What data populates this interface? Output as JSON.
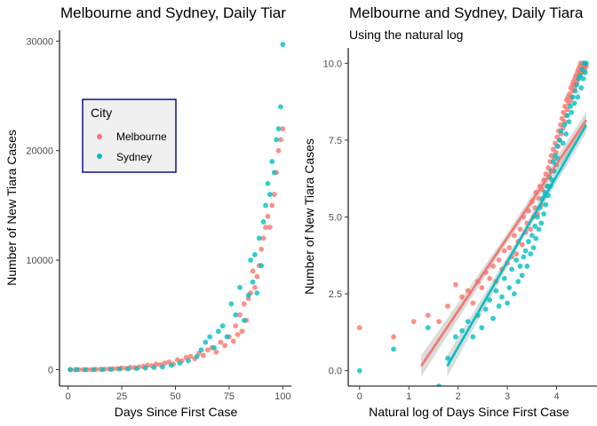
{
  "colors": {
    "melbourne": "#F8766D",
    "sydney": "#00BFC4",
    "legend_border": "#00008B",
    "legend_fill": "#F0F0F0"
  },
  "chart_data": [
    {
      "type": "scatter",
      "title": "Melbourne and Sydney, Daily Tiar",
      "subtitle": "",
      "xlabel": "Days Since First Case",
      "ylabel": "Number of New Tiara Cases",
      "xlim": [
        -4,
        104
      ],
      "ylim": [
        -1500,
        31000
      ],
      "xticks": [
        0,
        25,
        50,
        75,
        100
      ],
      "yticks": [
        0,
        10000,
        20000,
        30000
      ],
      "legend": {
        "title": "City",
        "position": "inside-top-left",
        "entries": [
          "Melbourne",
          "Sydney"
        ]
      },
      "series": [
        {
          "name": "Melbourne",
          "x": [
            1,
            3,
            5,
            7,
            9,
            11,
            13,
            15,
            17,
            19,
            21,
            23,
            25,
            27,
            29,
            31,
            33,
            35,
            37,
            39,
            41,
            43,
            45,
            47,
            49,
            51,
            53,
            55,
            57,
            59,
            61,
            63,
            65,
            67,
            69,
            71,
            73,
            75,
            77,
            78,
            79,
            80,
            81,
            82,
            83,
            84,
            85,
            86,
            87,
            88,
            89,
            90,
            91,
            92,
            93,
            94,
            95,
            96,
            97,
            98,
            99,
            100
          ],
          "y": [
            0,
            0,
            0,
            0,
            0,
            0,
            20,
            30,
            40,
            60,
            80,
            100,
            150,
            120,
            200,
            180,
            250,
            300,
            400,
            350,
            500,
            450,
            600,
            700,
            500,
            900,
            800,
            1100,
            1200,
            1000,
            1500,
            1300,
            1800,
            2000,
            1600,
            2500,
            2200,
            3000,
            2600,
            4000,
            3200,
            5000,
            3500,
            6000,
            4500,
            6500,
            7000,
            9000,
            7500,
            8500,
            9500,
            11000,
            12000,
            13000,
            14000,
            13000,
            15000,
            16000,
            18000,
            20000,
            21000,
            22000
          ]
        },
        {
          "name": "Sydney",
          "x": [
            1,
            4,
            8,
            12,
            16,
            20,
            24,
            28,
            32,
            36,
            40,
            44,
            48,
            52,
            56,
            60,
            62,
            64,
            66,
            68,
            70,
            72,
            74,
            76,
            78,
            80,
            82,
            84,
            85,
            86,
            87,
            88,
            89,
            90,
            91,
            92,
            93,
            94,
            95,
            96,
            97,
            98,
            99,
            100
          ],
          "y": [
            0,
            0,
            0,
            10,
            20,
            30,
            60,
            80,
            100,
            150,
            200,
            250,
            400,
            600,
            800,
            1200,
            1800,
            2500,
            3000,
            2000,
            3500,
            4000,
            3000,
            6000,
            5000,
            7500,
            4500,
            6800,
            10000,
            8000,
            10500,
            7000,
            12000,
            9500,
            13500,
            15000,
            17000,
            16000,
            19000,
            18000,
            21000,
            22000,
            24000,
            29700
          ]
        }
      ]
    },
    {
      "type": "scatter",
      "title": "Melbourne and Sydney, Daily Tiara",
      "subtitle": "Using the natural log",
      "xlabel": "Natural log of Days Since First Case",
      "ylabel": "Number of New Tiara Cases",
      "xlim": [
        -0.23,
        4.82
      ],
      "ylim": [
        -0.5,
        10.5
      ],
      "xticks": [
        0,
        1,
        2,
        3,
        4
      ],
      "yticks": [
        0.0,
        2.5,
        5.0,
        7.5,
        10.0
      ],
      "ytick_labels": [
        "0.0",
        "2.5",
        "5.0",
        "7.5",
        "10.0"
      ],
      "series": [
        {
          "name": "Melbourne",
          "x": [
            0.0,
            0.69,
            1.1,
            1.39,
            1.61,
            1.79,
            1.95,
            2.08,
            2.2,
            2.3,
            2.4,
            2.48,
            2.56,
            2.64,
            2.71,
            2.77,
            2.83,
            2.89,
            2.94,
            3.0,
            3.04,
            3.09,
            3.14,
            3.18,
            3.22,
            3.26,
            3.3,
            3.33,
            3.37,
            3.4,
            3.43,
            3.47,
            3.5,
            3.53,
            3.56,
            3.58,
            3.61,
            3.64,
            3.66,
            3.69,
            3.71,
            3.74,
            3.76,
            3.78,
            3.81,
            3.83,
            3.85,
            3.87,
            3.89,
            3.91,
            3.93,
            3.95,
            3.97,
            3.99,
            4.01,
            4.03,
            4.04,
            4.06,
            4.08,
            4.09,
            4.11,
            4.13,
            4.14,
            4.16,
            4.17,
            4.19,
            4.2,
            4.22,
            4.23,
            4.25,
            4.26,
            4.28,
            4.29,
            4.3,
            4.32,
            4.33,
            4.34,
            4.36,
            4.37,
            4.38,
            4.39,
            4.41,
            4.42,
            4.43,
            4.44,
            4.45,
            4.47,
            4.48,
            4.49,
            4.5,
            4.51,
            4.52,
            4.53,
            4.54,
            4.55,
            4.56,
            4.57,
            4.58,
            4.59,
            4.6
          ],
          "y": [
            1.4,
            1.1,
            1.6,
            1.8,
            1.6,
            2.1,
            2.8,
            2.4,
            2.6,
            2.2,
            2.9,
            2.7,
            3.2,
            3.0,
            3.4,
            2.9,
            3.6,
            3.3,
            3.9,
            3.5,
            4.0,
            3.7,
            4.4,
            3.8,
            4.2,
            4.6,
            4.1,
            5.0,
            4.5,
            4.8,
            5.2,
            4.6,
            5.5,
            5.0,
            5.3,
            5.8,
            5.1,
            5.6,
            6.0,
            5.4,
            5.9,
            6.2,
            5.7,
            6.4,
            6.0,
            6.6,
            6.3,
            6.8,
            7.0,
            6.5,
            7.2,
            6.9,
            7.4,
            7.1,
            7.6,
            7.3,
            7.8,
            7.5,
            8.0,
            7.7,
            8.2,
            7.9,
            8.4,
            8.1,
            8.6,
            8.3,
            8.8,
            8.5,
            8.9,
            8.7,
            9.0,
            8.8,
            9.2,
            8.9,
            9.3,
            9.1,
            9.4,
            9.2,
            9.5,
            9.3,
            9.6,
            9.4,
            9.7,
            9.5,
            9.8,
            9.6,
            9.9,
            9.7,
            10.0,
            9.8,
            9.9,
            9.7,
            10.0,
            9.8,
            9.9,
            10.0,
            9.8,
            9.9,
            10.0,
            9.9
          ],
          "fit": {
            "x": [
              1.25,
              4.6
            ],
            "y": [
              0.15,
              8.15
            ]
          }
        },
        {
          "name": "Sydney",
          "x": [
            0.0,
            0.69,
            1.39,
            1.61,
            1.79,
            1.95,
            2.08,
            2.2,
            2.3,
            2.4,
            2.48,
            2.56,
            2.64,
            2.71,
            2.77,
            2.83,
            2.89,
            2.94,
            3.0,
            3.04,
            3.09,
            3.14,
            3.18,
            3.22,
            3.26,
            3.3,
            3.33,
            3.37,
            3.4,
            3.43,
            3.47,
            3.5,
            3.53,
            3.56,
            3.58,
            3.61,
            3.64,
            3.66,
            3.69,
            3.71,
            3.74,
            3.76,
            3.78,
            3.81,
            3.83,
            3.85,
            3.87,
            3.89,
            3.91,
            3.93,
            3.95,
            3.97,
            3.99,
            4.01,
            4.03,
            4.06,
            4.09,
            4.13,
            4.16,
            4.19,
            4.22,
            4.25,
            4.28,
            4.3,
            4.33,
            4.36,
            4.38,
            4.41,
            4.43,
            4.45,
            4.48,
            4.5,
            4.52,
            4.54,
            4.56,
            4.58,
            4.6
          ],
          "y": [
            0.0,
            0.7,
            1.4,
            -0.5,
            0.4,
            1.1,
            1.3,
            1.6,
            1.1,
            1.8,
            1.4,
            2.0,
            2.3,
            1.7,
            2.6,
            2.1,
            2.4,
            3.0,
            2.2,
            2.7,
            3.3,
            2.5,
            3.6,
            2.9,
            3.4,
            3.1,
            3.7,
            3.9,
            3.4,
            4.2,
            3.8,
            4.4,
            4.0,
            4.7,
            4.3,
            5.0,
            4.6,
            5.3,
            4.8,
            5.6,
            5.1,
            5.8,
            5.4,
            6.0,
            5.7,
            6.3,
            6.0,
            6.5,
            6.2,
            6.8,
            6.5,
            7.0,
            6.7,
            7.3,
            6.9,
            7.5,
            7.8,
            7.4,
            8.0,
            7.7,
            8.3,
            8.1,
            8.6,
            8.4,
            8.9,
            8.7,
            9.1,
            9.3,
            8.9,
            9.5,
            9.6,
            9.2,
            9.8,
            9.5,
            10.0,
            9.7,
            10.0
          ],
          "fit": {
            "x": [
              1.78,
              4.6
            ],
            "y": [
              0.15,
              8.0
            ]
          }
        }
      ]
    }
  ]
}
